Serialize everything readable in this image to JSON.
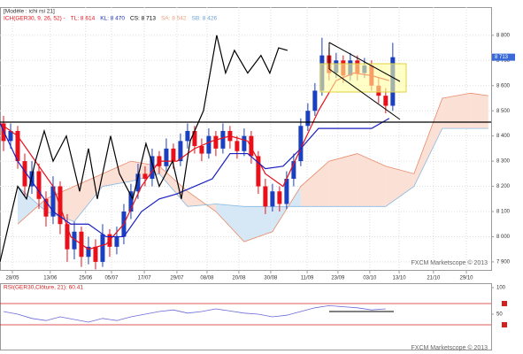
{
  "chart_data": [
    {
      "type": "candlestick",
      "title": "[Modèle : ichi rsi 21]",
      "legend": [
        {
          "text": "ICH(GER30, 9, 26, 52) -",
          "color": "#e8101a"
        },
        {
          "text": "TL: 8 614",
          "color": "#e8101a"
        },
        {
          "text": "KL: 8 470",
          "color": "#1a2fbf"
        },
        {
          "text": "CS: 8 713",
          "color": "#000000"
        },
        {
          "text": "SA: 8 542",
          "color": "#e8a080"
        },
        {
          "text": "SB: 8 426",
          "color": "#6aa0d8"
        }
      ],
      "watermark": "FXCM Marketscope © 2013",
      "xlim": [
        0,
        69.4
      ],
      "xticks": [
        {
          "value": 1.75,
          "label": "28/05"
        },
        {
          "value": 7.1,
          "label": "13/06"
        },
        {
          "value": 12.1,
          "label": "25/06"
        },
        {
          "value": 15.75,
          "label": "05/07"
        },
        {
          "value": 20.4,
          "label": "17/07"
        },
        {
          "value": 25,
          "label": "29/07"
        },
        {
          "value": 29.25,
          "label": "08/08"
        },
        {
          "value": 33.75,
          "label": "20/08"
        },
        {
          "value": 38.25,
          "label": "30/08"
        },
        {
          "value": 43.4,
          "label": "11/09"
        },
        {
          "value": 47.75,
          "label": "23/09"
        },
        {
          "value": 52.25,
          "label": "03/10"
        },
        {
          "value": 56.4,
          "label": "13/10"
        },
        {
          "value": 61.25,
          "label": "21/10"
        },
        {
          "value": 65.9,
          "label": "29/10"
        }
      ],
      "ylim": [
        7868,
        8912
      ],
      "yticks": [
        {
          "value": 7900,
          "label": "7 900"
        },
        {
          "value": 8000,
          "label": "8 000"
        },
        {
          "value": 8100,
          "label": "8 100"
        },
        {
          "value": 8200,
          "label": "8 200"
        },
        {
          "value": 8300,
          "label": "8 300"
        },
        {
          "value": 8400,
          "label": "8 400"
        },
        {
          "value": 8500,
          "label": "8 500"
        },
        {
          "value": 8600,
          "label": "8 600"
        },
        {
          "value": 8700,
          "label": "8 700"
        },
        {
          "value": 8800,
          "label": "8 800"
        }
      ],
      "last_price": {
        "value": 8713,
        "label": "8 713"
      },
      "grid": true,
      "up_color": "#1a3fbf",
      "down_color": "#e8101a",
      "candles": {
        "x": [
          0.5,
          1.5,
          2.5,
          3.5,
          4.5,
          5.5,
          6.5,
          7.5,
          8.5,
          9.5,
          10.5,
          11.5,
          12.5,
          13.5,
          14.5,
          15.5,
          16.5,
          17.5,
          18.5,
          19.5,
          20.5,
          21.5,
          22.5,
          23.5,
          24.5,
          25.5,
          26.5,
          27.5,
          28.5,
          29.5,
          30.5,
          31.5,
          32.5,
          33.5,
          34.5,
          35.5,
          36.5,
          37.5,
          38.5,
          39.5,
          40.5,
          41.5,
          42.5,
          43.5,
          44.5,
          45.5,
          46.5,
          47.5,
          48.5,
          49.5,
          50.5,
          51.5,
          52.5,
          53.5,
          54.5,
          55.5
        ],
        "open": [
          8450,
          8380,
          8420,
          8300,
          8200,
          8260,
          8150,
          8080,
          8200,
          8050,
          7950,
          8020,
          7920,
          7960,
          7900,
          8010,
          7960,
          8000,
          8100,
          8180,
          8250,
          8230,
          8320,
          8280,
          8350,
          8300,
          8380,
          8420,
          8360,
          8330,
          8400,
          8350,
          8420,
          8380,
          8340,
          8400,
          8320,
          8200,
          8120,
          8180,
          8130,
          8230,
          8300,
          8440,
          8500,
          8580,
          8720,
          8650,
          8700,
          8640,
          8700,
          8650,
          8680,
          8600,
          8560,
          8520
        ],
        "high": [
          8480,
          8450,
          8440,
          8330,
          8300,
          8290,
          8180,
          8240,
          8220,
          8090,
          8060,
          8040,
          8000,
          7990,
          8050,
          8030,
          8040,
          8130,
          8210,
          8290,
          8280,
          8350,
          8340,
          8390,
          8370,
          8410,
          8450,
          8440,
          8390,
          8430,
          8420,
          8450,
          8440,
          8400,
          8430,
          8420,
          8340,
          8230,
          8210,
          8200,
          8260,
          8330,
          8470,
          8530,
          8610,
          8790,
          8750,
          8730,
          8720,
          8730,
          8720,
          8710,
          8700,
          8630,
          8590,
          8770
        ],
        "low": [
          8340,
          8350,
          8270,
          8160,
          8170,
          8110,
          8040,
          8050,
          8010,
          7900,
          7910,
          7880,
          7890,
          7870,
          7880,
          7920,
          7930,
          7970,
          8070,
          8150,
          8200,
          8200,
          8250,
          8260,
          8270,
          8280,
          8350,
          8330,
          8300,
          8310,
          8320,
          8330,
          8350,
          8310,
          8320,
          8290,
          8170,
          8090,
          8100,
          8100,
          8110,
          8200,
          8280,
          8420,
          8480,
          8560,
          8620,
          8630,
          8610,
          8620,
          8620,
          8630,
          8580,
          8530,
          8490,
          8500
        ],
        "close": [
          8380,
          8420,
          8300,
          8200,
          8260,
          8150,
          8080,
          8200,
          8050,
          7950,
          8020,
          7920,
          7960,
          7900,
          8010,
          7960,
          8000,
          8100,
          8180,
          8250,
          8230,
          8320,
          8280,
          8350,
          8300,
          8380,
          8420,
          8360,
          8330,
          8400,
          8350,
          8420,
          8380,
          8340,
          8400,
          8320,
          8200,
          8120,
          8180,
          8130,
          8230,
          8300,
          8440,
          8500,
          8580,
          8720,
          8650,
          8700,
          8640,
          8700,
          8650,
          8680,
          8600,
          8560,
          8520,
          8713
        ]
      },
      "cloud": {
        "x": [
          2.5,
          6.5,
          10.5,
          14.5,
          18.5,
          22.5,
          26.5,
          30.5,
          34.5,
          38.5,
          42.5,
          46.5,
          50.5,
          54.5,
          58.5,
          62.5,
          66.5,
          69
        ],
        "span_a": [
          8050,
          8150,
          8200,
          8250,
          8300,
          8280,
          8180,
          8100,
          7980,
          8020,
          8200,
          8300,
          8330,
          8280,
          8250,
          8550,
          8570,
          8560
        ],
        "span_b": [
          8200,
          8100,
          8060,
          8200,
          8220,
          8250,
          8120,
          8130,
          8120,
          8120,
          8120,
          8120,
          8120,
          8120,
          8200,
          8430,
          8430,
          8430
        ],
        "color_a": "#e88a6a",
        "color_b": "#8ab8e0",
        "fill_up": "#d6e8f6",
        "fill_down": "#fbe0d6"
      },
      "series": [
        {
          "color": "#e8101a",
          "x": [
            0,
            2.5,
            5,
            7.5,
            10,
            12.5,
            15,
            17.5,
            20,
            22.5,
            25,
            27.5,
            30,
            32.5,
            35,
            37.5,
            40,
            42.5,
            45,
            47.5,
            50,
            52.5,
            55
          ],
          "values": [
            8450,
            8400,
            8300,
            8200,
            8000,
            7950,
            7970,
            8050,
            8200,
            8300,
            8300,
            8350,
            8380,
            8400,
            8380,
            8250,
            8200,
            8350,
            8500,
            8620,
            8650,
            8640,
            8620
          ]
        },
        {
          "color": "#1a1fbf",
          "x": [
            0,
            2.5,
            5,
            7.5,
            10,
            12.5,
            15,
            17.5,
            20,
            22.5,
            25,
            27.5,
            30,
            32.5,
            35,
            37.5,
            40,
            42.5,
            45,
            47.5,
            50,
            52.5,
            55
          ],
          "values": [
            8450,
            8300,
            8200,
            8100,
            8050,
            8050,
            8000,
            8000,
            8100,
            8150,
            8170,
            8200,
            8230,
            8330,
            8330,
            8270,
            8280,
            8350,
            8430,
            8430,
            8430,
            8430,
            8470
          ]
        },
        {
          "color": "#000000",
          "x": [
            0,
            1.25,
            2.5,
            3.75,
            5,
            6.25,
            7.5,
            9.375,
            11.25,
            12.5,
            13.75,
            15.625,
            16.875,
            18.75,
            20.625,
            22.5,
            24.375,
            25.625,
            26.875,
            28.75,
            30.625,
            31.875,
            33.125,
            35,
            36.875,
            38.125,
            39.375,
            40.625
          ],
          "values": [
            7900,
            8050,
            8200,
            8150,
            8300,
            8420,
            8300,
            8400,
            8180,
            8350,
            8150,
            8400,
            8250,
            8150,
            8370,
            8200,
            8300,
            8150,
            8380,
            8500,
            8800,
            8650,
            8740,
            8650,
            8720,
            8650,
            8750,
            8740
          ]
        }
      ]
    },
    {
      "type": "line",
      "title": "RSI(GER30,Clôture, 21): 60.41",
      "watermark": "FXCM Marketscope © 2013",
      "xlim": [
        0,
        69.4
      ],
      "ylim": [
        0,
        100
      ],
      "yticks": [
        100,
        50
      ],
      "levels": [
        70,
        30
      ],
      "level_color": "#d02020",
      "series": [
        {
          "color": "#6a6ad8",
          "x": [
            0.5,
            2.5,
            4.5,
            6.5,
            8.5,
            10.5,
            12.5,
            14.5,
            16.5,
            18.5,
            20.5,
            22.5,
            24.5,
            26.5,
            28.5,
            30.5,
            32.5,
            34.5,
            36.5,
            38.5,
            40.5,
            42.5,
            44.5,
            46.5,
            48.5,
            50.5,
            52.5,
            54.5
          ],
          "values": [
            55,
            50,
            42,
            38,
            45,
            40,
            35,
            42,
            38,
            45,
            50,
            55,
            58,
            52,
            55,
            60,
            56,
            52,
            50,
            45,
            48,
            55,
            62,
            66,
            64,
            62,
            58,
            60
          ]
        }
      ]
    }
  ]
}
